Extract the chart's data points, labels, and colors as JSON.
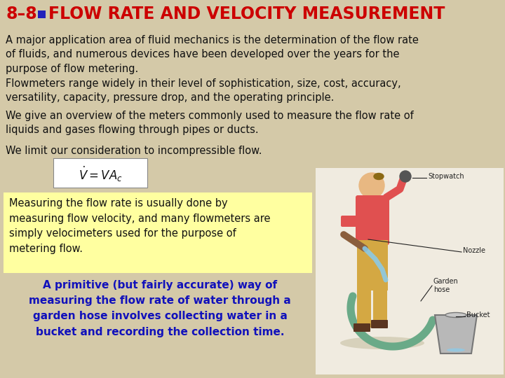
{
  "bg_color": "#d4c9a8",
  "title_text": "8–8",
  "title_square_color": "#2222bb",
  "title_main": "FLOW RATE AND VELOCITY MEASUREMENT",
  "title_color": "#cc0000",
  "title_fontsize": 17,
  "body_fontsize": 10.5,
  "para1": "A major application area of fluid mechanics is the determination of the flow rate\nof fluids, and numerous devices have been developed over the years for the\npurpose of flow metering.",
  "para2": "Flowmeters range widely in their level of sophistication, size, cost, accuracy,\nversatility, capacity, pressure drop, and the operating principle.",
  "para3": "We give an overview of the meters commonly used to measure the flow rate of\nliquids and gases flowing through pipes or ducts.",
  "para4": "We limit our consideration to incompressible flow.",
  "yellow_box_text": "Measuring the flow rate is usually done by\nmeasuring flow velocity, and many flowmeters are\nsimply velocimeters used for the purpose of\nmetering flow.",
  "yellow_box_color": "#ffffa0",
  "blue_text": "A primitive (but fairly accurate) way of\nmeasuring the flow rate of water through a\ngarden hose involves collecting water in a\nbucket and recording the collection time.",
  "blue_text_color": "#1111bb",
  "formula": "$\\dot{V} = VA_c$",
  "formula_box_color": "#ffffff",
  "body_color": "#111111"
}
